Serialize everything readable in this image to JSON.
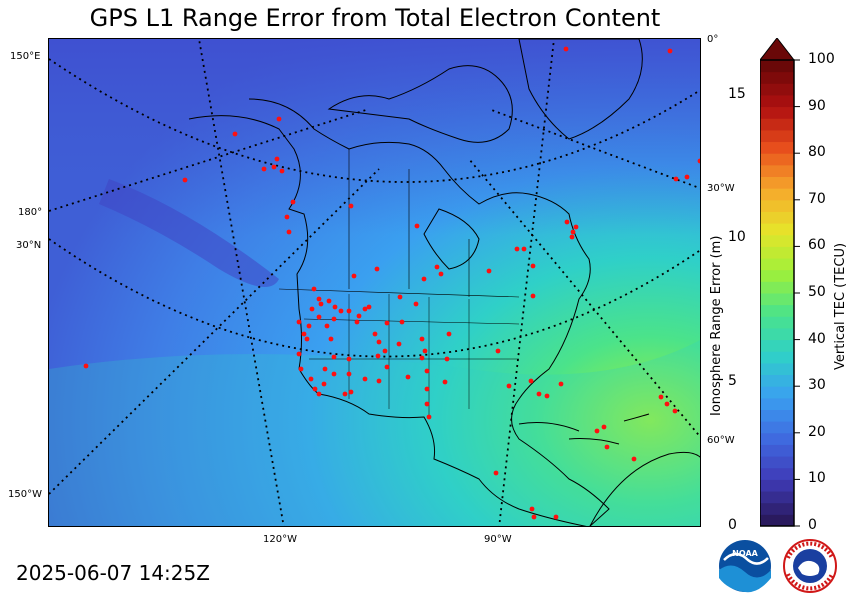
{
  "title": "GPS L1 Range Error from Total Electron Content",
  "timestamp": "2025-06-07 14:25Z",
  "map_labels": {
    "lon_bottom": [
      "120°W",
      "90°W"
    ],
    "lon_right": [
      "0°",
      "30°W",
      "60°W"
    ],
    "left_edge": [
      "150°E",
      "180°",
      "30°N",
      "150°W"
    ]
  },
  "chart_data": {
    "type": "heatmap",
    "title": "GPS L1 Range Error from Total Electron Content",
    "colorbar": {
      "label": "Vertical TEC (TECU)",
      "ticks": [
        0,
        10,
        20,
        30,
        40,
        50,
        60,
        70,
        80,
        90,
        100
      ],
      "range": [
        0,
        100
      ],
      "colors": [
        "#2a1a5e",
        "#3f3bb8",
        "#3f6be0",
        "#3aa0f0",
        "#2fd0c8",
        "#4be38a",
        "#9ef03a",
        "#e6e42a",
        "#f6a92c",
        "#e8501c",
        "#b01010",
        "#6a0808"
      ]
    },
    "secondary_axis": {
      "label": "Ionosphere Range Error (m)",
      "ticks": [
        0,
        5,
        10,
        15
      ],
      "range": [
        0,
        16.2
      ]
    },
    "gps_stations": 95
  },
  "logos": {
    "noaa": "NOAA",
    "nws": "NATIONAL WEATHER SERVICE"
  }
}
